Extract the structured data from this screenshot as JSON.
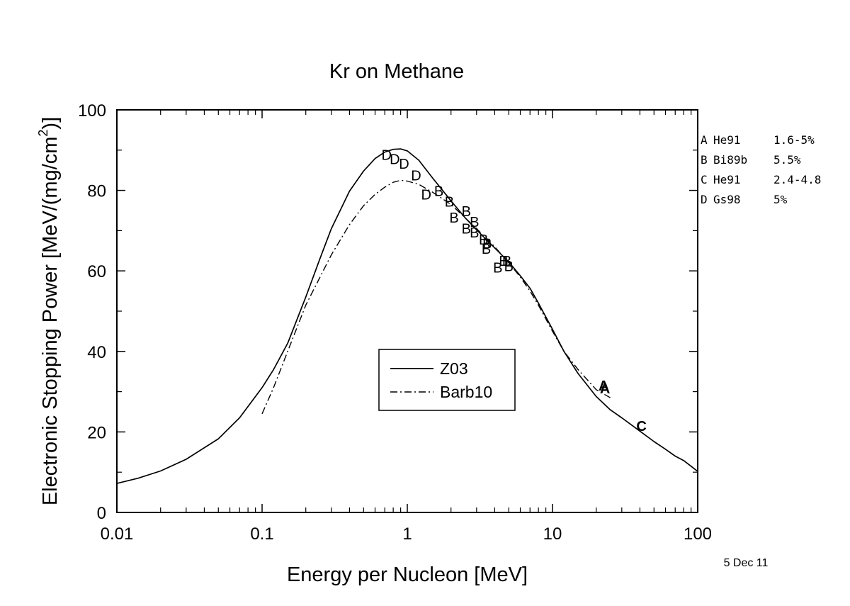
{
  "chart_data": {
    "type": "line",
    "title": "Kr on Methane",
    "xlabel": "Energy per Nucleon [MeV]",
    "ylabel_main": "Electronic Stopping Power [MeV/(mg/cm",
    "ylabel_sup": "2",
    "ylabel_end": ")]",
    "xscale": "log",
    "xlim": [
      0.01,
      100
    ],
    "ylim": [
      0,
      100
    ],
    "x_ticks": [
      0.01,
      0.1,
      1,
      10,
      100
    ],
    "x_tick_labels": [
      "0.01",
      "0.1",
      "1",
      "10",
      "100"
    ],
    "y_ticks": [
      0,
      20,
      40,
      60,
      80,
      100
    ],
    "y_tick_labels": [
      "0",
      "20",
      "40",
      "60",
      "80",
      "100"
    ],
    "grid": false,
    "legend_position": "center",
    "series": [
      {
        "name": "Z03",
        "style": "solid",
        "x": [
          0.01,
          0.014,
          0.02,
          0.03,
          0.05,
          0.07,
          0.1,
          0.12,
          0.15,
          0.2,
          0.25,
          0.3,
          0.4,
          0.5,
          0.6,
          0.7,
          0.8,
          0.9,
          1.0,
          1.2,
          1.5,
          2,
          2.5,
          3,
          4,
          5,
          6,
          7,
          8,
          10,
          12,
          15,
          20,
          25,
          30,
          40,
          50,
          60,
          70,
          80,
          100
        ],
        "y": [
          7.2,
          8.5,
          10.3,
          13.2,
          18.3,
          23.5,
          31.0,
          35.5,
          42.0,
          53.5,
          63.0,
          70.5,
          79.8,
          84.8,
          87.9,
          89.5,
          90.2,
          90.3,
          89.8,
          87.5,
          83.0,
          77.4,
          73.2,
          70.2,
          65.7,
          62.2,
          58.8,
          55.7,
          52.0,
          45.5,
          40.0,
          34.5,
          28.8,
          25.5,
          23.5,
          20.2,
          17.6,
          15.7,
          14.0,
          12.9,
          10.2
        ]
      },
      {
        "name": "Barb10",
        "style": "dashdot",
        "x": [
          0.1,
          0.12,
          0.15,
          0.2,
          0.3,
          0.4,
          0.5,
          0.6,
          0.7,
          0.8,
          0.9,
          1.0,
          1.2,
          1.5,
          2,
          3,
          4,
          5,
          6,
          7,
          8,
          10,
          12,
          15,
          20,
          25
        ],
        "y": [
          24.5,
          31.0,
          40.0,
          51.5,
          64.0,
          71.5,
          76.2,
          79.0,
          80.8,
          82.0,
          82.5,
          82.3,
          81.5,
          79.5,
          76.5,
          70.5,
          66.0,
          62.0,
          58.5,
          55.0,
          51.5,
          45.0,
          40.0,
          35.5,
          30.5,
          28.5
        ]
      }
    ],
    "markers": [
      {
        "label": "A",
        "x": 23,
        "y": 30.8
      },
      {
        "label": "A",
        "x": 22.5,
        "y": 31.5
      },
      {
        "label": "C",
        "x": 41,
        "y": 21.5
      },
      {
        "label": "D",
        "x": 0.72,
        "y": 88.8
      },
      {
        "label": "D",
        "x": 0.82,
        "y": 87.8
      },
      {
        "label": "D",
        "x": 0.95,
        "y": 86.6
      },
      {
        "label": "D",
        "x": 1.15,
        "y": 83.7
      },
      {
        "label": "D",
        "x": 1.35,
        "y": 79.0
      },
      {
        "label": "B",
        "x": 1.65,
        "y": 79.8
      },
      {
        "label": "B",
        "x": 1.95,
        "y": 77.2
      },
      {
        "label": "B",
        "x": 2.1,
        "y": 73.2
      },
      {
        "label": "B",
        "x": 2.55,
        "y": 74.8
      },
      {
        "label": "B",
        "x": 2.55,
        "y": 70.5
      },
      {
        "label": "B",
        "x": 2.9,
        "y": 72.2
      },
      {
        "label": "B",
        "x": 2.9,
        "y": 69.5
      },
      {
        "label": "B",
        "x": 3.35,
        "y": 67.8
      },
      {
        "label": "B",
        "x": 3.55,
        "y": 66.8
      },
      {
        "label": "B",
        "x": 3.5,
        "y": 65.5
      },
      {
        "label": "B",
        "x": 4.2,
        "y": 60.8
      },
      {
        "label": "B",
        "x": 4.6,
        "y": 62.5
      },
      {
        "label": "B",
        "x": 4.85,
        "y": 62.5
      },
      {
        "label": "B",
        "x": 5.0,
        "y": 61.2
      }
    ],
    "reference_legend": [
      {
        "key": "A",
        "source": "He91",
        "error": "1.6-5%"
      },
      {
        "key": "B",
        "source": "Bi89b",
        "error": "5.5%"
      },
      {
        "key": "C",
        "source": "He91",
        "error": "2.4-4.8"
      },
      {
        "key": "D",
        "source": "Gs98",
        "error": "5%"
      }
    ],
    "date_stamp": "5 Dec 11"
  }
}
